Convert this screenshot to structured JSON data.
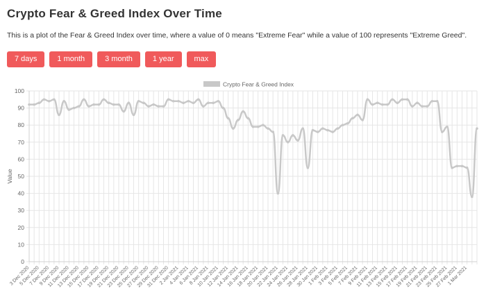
{
  "page": {
    "title": "Crypto Fear & Greed Index Over Time",
    "description": "This is a plot of the Fear & Greed Index over time, where a value of 0 means \"Extreme Fear\" while a value of 100 represents \"Extreme Greed\"."
  },
  "range_buttons": [
    {
      "label": "7 days"
    },
    {
      "label": "1 month"
    },
    {
      "label": "3 month"
    },
    {
      "label": "1 year"
    },
    {
      "label": "max"
    }
  ],
  "colors": {
    "button_bg": "#f05a5b",
    "series_line": "#c8c8c8",
    "grid": "#e6e6e6"
  },
  "chart_data": {
    "type": "line",
    "title": "",
    "xlabel": "",
    "ylabel": "Value",
    "ylim": [
      0,
      100
    ],
    "yticks": [
      0,
      10,
      20,
      30,
      40,
      50,
      60,
      70,
      80,
      90,
      100
    ],
    "grid": true,
    "legend_position": "top-center",
    "x_tick_labels": [
      "3 Dec 2020",
      "5 Dec 2020",
      "7 Dec 2020",
      "9 Dec 2020",
      "11 Dec 2020",
      "13 Dec 2020",
      "15 Dec 2020",
      "17 Dec 2020",
      "19 Dec 2020",
      "21 Dec 2020",
      "23 Dec 2020",
      "25 Dec 2020",
      "27 Dec 2020",
      "29 Dec 2020",
      "31 Dec 2020",
      "2 Jan 2021",
      "4 Jan 2021",
      "6 Jan 2021",
      "8 Jan 2021",
      "10 Jan 2021",
      "12 Jan 2021",
      "14 Jan 2021",
      "16 Jan 2021",
      "18 Jan 2021",
      "20 Jan 2021",
      "22 Jan 2021",
      "24 Jan 2021",
      "26 Jan 2021",
      "28 Jan 2021",
      "30 Jan 2021",
      "1 Feb 2021",
      "3 Feb 2021",
      "5 Feb 2021",
      "7 Feb 2021",
      "9 Feb 2021",
      "11 Feb 2021",
      "13 Feb 2021",
      "15 Feb 2021",
      "17 Feb 2021",
      "19 Feb 2021",
      "21 Feb 2021",
      "23 Feb 2021",
      "25 Feb 2021",
      "27 Feb 2021",
      "1 Mar 2021"
    ],
    "series": [
      {
        "name": "Crypto Fear & Greed Index",
        "values": [
          92,
          92,
          93,
          95,
          94,
          95,
          86,
          94,
          89,
          90,
          91,
          95,
          91,
          92,
          92,
          95,
          93,
          92,
          92,
          88,
          93,
          86,
          94,
          93,
          91,
          92,
          91,
          91,
          95,
          94,
          94,
          93,
          94,
          93,
          95,
          91,
          93,
          93,
          94,
          90,
          84,
          78,
          83,
          88,
          84,
          79,
          79,
          80,
          78,
          76,
          40,
          74,
          70,
          74,
          71,
          78,
          55,
          77,
          76,
          78,
          77,
          76,
          78,
          80,
          81,
          84,
          86,
          83,
          95,
          92,
          93,
          92,
          92,
          95,
          93,
          95,
          95,
          91,
          93,
          91,
          91,
          94,
          94,
          76,
          79,
          55,
          56,
          56,
          55,
          38,
          78
        ]
      }
    ]
  }
}
